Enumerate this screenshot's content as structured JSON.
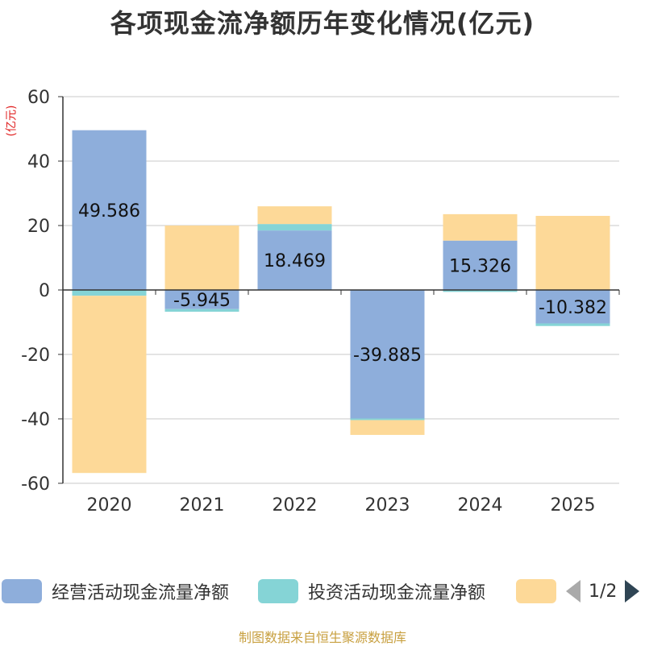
{
  "title": "各项现金流净额历年变化情况(亿元)",
  "unit_label": "(亿元)",
  "source": "制图数据来自恒生聚源数据库",
  "legend": {
    "items": [
      {
        "name": "经营活动现金流量净额",
        "color": "#8eaedb"
      },
      {
        "name": "投资活动现金流量净额",
        "color": "#85d4d6"
      },
      {
        "name": "",
        "color": "#fdd998"
      }
    ],
    "pager": "1/2"
  },
  "chart_data": {
    "type": "bar",
    "stacked": true,
    "categories": [
      "2020",
      "2021",
      "2022",
      "2023",
      "2024",
      "2025"
    ],
    "ylim": [
      -60,
      60
    ],
    "yticks": [
      60,
      40,
      20,
      0,
      -20,
      -40,
      -60
    ],
    "grid": true,
    "series": [
      {
        "name": "经营活动现金流量净额",
        "color": "#8eaedb",
        "values": [
          49.586,
          -5.945,
          18.469,
          -39.885,
          15.326,
          -10.382
        ],
        "labels": [
          "49.586",
          "-5.945",
          "18.469",
          "-39.885",
          "15.326",
          "-10.382"
        ]
      },
      {
        "name": "投资活动现金流量净额",
        "color": "#85d4d6",
        "values": [
          -1.8,
          -0.8,
          2.0,
          -0.5,
          -0.6,
          -0.8
        ]
      },
      {
        "name": "",
        "color": "#fdd998",
        "values": [
          -55.0,
          20.0,
          5.5,
          -4.6,
          8.2,
          23.0
        ]
      }
    ]
  }
}
